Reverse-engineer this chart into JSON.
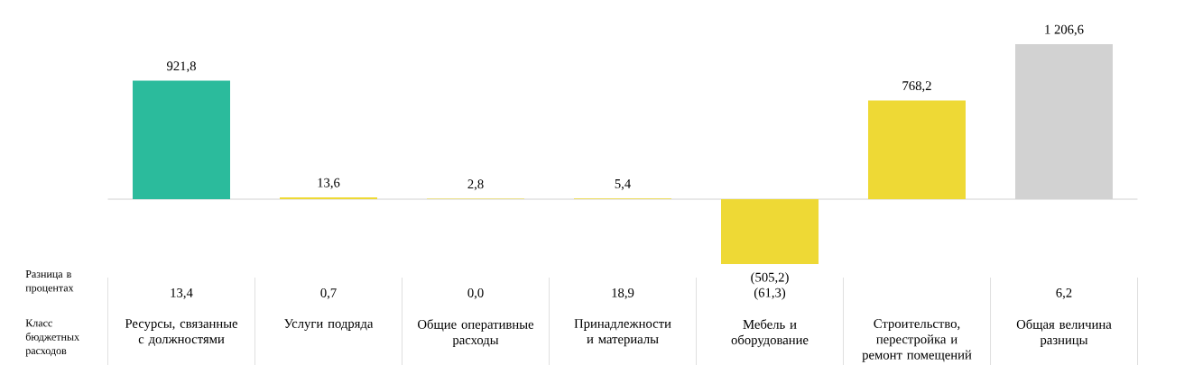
{
  "chart_data": {
    "type": "bar",
    "categories": [
      "Ресурсы, связанные с должностями",
      "Услуги подряда",
      "Общие оперативные расходы",
      "Принадлежности и материалы",
      "Мебель и оборудование",
      "Строительство, перестройка и ремонт помещений",
      "Общая величина разницы"
    ],
    "values": [
      921.8,
      13.6,
      2.8,
      5.4,
      -505.2,
      768.2,
      1206.6
    ],
    "value_labels": [
      "921,8",
      "13,6",
      "2,8",
      "5,4",
      "(505,2)",
      "768,2",
      "1 206,6"
    ],
    "colors": [
      "#2bbb9c",
      "#eed935",
      "#eed935",
      "#eed935",
      "#eed935",
      "#eed935",
      "#d2d2d2"
    ],
    "annotations": [
      "Разница в процентах",
      "Класс бюджетных расходов",
      "13,4",
      "0,7",
      "0,0",
      "18,9",
      "(61,3)",
      "6,2"
    ]
  }
}
